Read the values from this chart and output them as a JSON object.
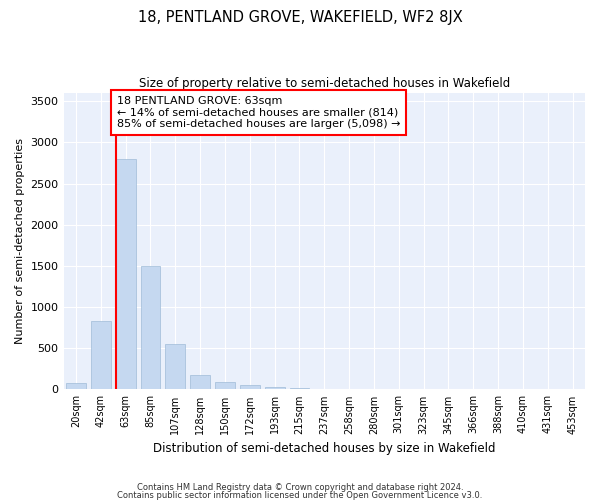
{
  "title": "18, PENTLAND GROVE, WAKEFIELD, WF2 8JX",
  "subtitle": "Size of property relative to semi-detached houses in Wakefield",
  "xlabel": "Distribution of semi-detached houses by size in Wakefield",
  "ylabel": "Number of semi-detached properties",
  "categories": [
    "20sqm",
    "42sqm",
    "63sqm",
    "85sqm",
    "107sqm",
    "128sqm",
    "150sqm",
    "172sqm",
    "193sqm",
    "215sqm",
    "237sqm",
    "258sqm",
    "280sqm",
    "301sqm",
    "323sqm",
    "345sqm",
    "366sqm",
    "388sqm",
    "410sqm",
    "431sqm",
    "453sqm"
  ],
  "values": [
    80,
    830,
    2800,
    1500,
    550,
    175,
    90,
    55,
    35,
    20,
    5,
    2,
    1,
    0,
    0,
    0,
    0,
    0,
    0,
    0,
    0
  ],
  "bar_color": "#c5d8f0",
  "bar_edge_color": "#a0bcd8",
  "red_line_index": 2,
  "annotation_title": "18 PENTLAND GROVE: 63sqm",
  "annotation_line1": "← 14% of semi-detached houses are smaller (814)",
  "annotation_line2": "85% of semi-detached houses are larger (5,098) →",
  "ylim": [
    0,
    3600
  ],
  "yticks": [
    0,
    500,
    1000,
    1500,
    2000,
    2500,
    3000,
    3500
  ],
  "bg_color": "#eaf0fb",
  "footer1": "Contains HM Land Registry data © Crown copyright and database right 2024.",
  "footer2": "Contains public sector information licensed under the Open Government Licence v3.0.",
  "title_fontsize": 10.5,
  "subtitle_fontsize": 8.5
}
